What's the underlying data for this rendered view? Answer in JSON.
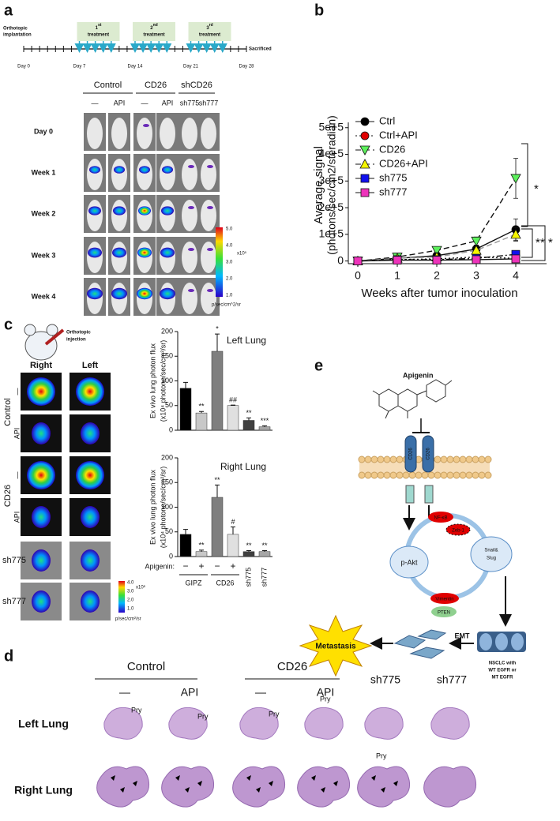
{
  "panel_labels": [
    "a",
    "b",
    "c",
    "d",
    "e"
  ],
  "panel_a": {
    "start_label": [
      "Orthotopic",
      "implantation"
    ],
    "end_label": "Sacrificed",
    "days": [
      "Day 0",
      "Day 7",
      "Day 14",
      "Day 21",
      "Day 28"
    ],
    "treatments": [
      {
        "number": "1",
        "suffix": "st",
        "word": "treatment"
      },
      {
        "number": "2",
        "suffix": "nd",
        "word": "treatment"
      },
      {
        "number": "3",
        "suffix": "rd",
        "word": "treatment"
      }
    ],
    "groups": [
      "Control",
      "CD26",
      "shCD26"
    ],
    "columns": [
      "—",
      "API",
      "—",
      "API",
      "sh775",
      "sh777"
    ],
    "rows": [
      "Day 0",
      "Week 1",
      "Week 2",
      "Week 3",
      "Week 4"
    ],
    "colorbar": {
      "ticks": [
        "5.0",
        "4.0",
        "3.0",
        "2.0",
        "1.0"
      ],
      "scale": "x10⁵",
      "unit": "p/sec/cm^2/sr"
    }
  },
  "chart_data": [
    {
      "type": "line",
      "xlabel": "Weeks after tumor inoculation",
      "ylabel": [
        "Average signal",
        "(photons/sec/cm2/steradian)"
      ],
      "x": [
        0,
        1,
        2,
        3,
        4
      ],
      "xlim": [
        -0.24,
        4.78
      ],
      "xticks": [
        0,
        1,
        2,
        3,
        4
      ],
      "ylim": [
        -10000,
        520000
      ],
      "yticks": [
        0,
        {
          "value": 100000,
          "label": "1e+5"
        },
        {
          "value": 200000,
          "label": "2e+5"
        },
        {
          "value": 300000,
          "label": "3e+5"
        },
        {
          "value": 400000,
          "label": "4e+5"
        },
        {
          "value": 500000,
          "label": "5e+5"
        }
      ],
      "legend": "upper left",
      "series": [
        {
          "name": "Ctrl",
          "color": "#000000",
          "marker": "circle",
          "dash": "solid",
          "values": [
            0,
            10000,
            20000,
            45000,
            118000
          ],
          "errors": [
            0,
            2000,
            4000,
            8000,
            40000
          ]
        },
        {
          "name": "Ctrl+API",
          "color": "#e00000",
          "marker": "circle",
          "dash": "dotted",
          "values": [
            0,
            5000,
            8000,
            15000,
            10000
          ],
          "errors": [
            0,
            1000,
            2000,
            3000,
            4000
          ]
        },
        {
          "name": "CD26",
          "color": "#5cf05c",
          "marker": "triangle-down",
          "dash": "dashed",
          "values": [
            0,
            15000,
            40000,
            75000,
            310000
          ],
          "errors": [
            0,
            3000,
            5000,
            15000,
            75000
          ]
        },
        {
          "name": "CD26+API",
          "color": "#f5f500",
          "marker": "triangle-up",
          "dash": "dashed",
          "values": [
            0,
            10000,
            15000,
            40000,
            100000
          ],
          "errors": [
            0,
            2000,
            3000,
            8000,
            25000
          ]
        },
        {
          "name": "sh775",
          "color": "#1010ee",
          "marker": "square",
          "dash": "dashdot",
          "values": [
            0,
            5000,
            5000,
            10000,
            25000
          ],
          "errors": [
            0,
            1000,
            1000,
            2000,
            5000
          ]
        },
        {
          "name": "sh777",
          "color": "#ee33bb",
          "marker": "square",
          "dash": "solid",
          "values": [
            0,
            3000,
            3000,
            5000,
            8000
          ],
          "errors": [
            0,
            1000,
            1000,
            1000,
            2000
          ]
        }
      ],
      "annotations": [
        "*",
        "*",
        "*",
        "*"
      ]
    },
    {
      "type": "bar",
      "title": "Left Lung",
      "ylabel": [
        "Ex vivo lung photon flux",
        "(x10⁴ photone/sec/cm²/sr)"
      ],
      "values": [
        85,
        35,
        160,
        50,
        20,
        7
      ],
      "errors": [
        12,
        3,
        35,
        1,
        5,
        2
      ],
      "colors": [
        "#000000",
        "#c8c8c8",
        "#7f7f7f",
        "#e0e0e0",
        "#404040",
        "#a6a6a6"
      ],
      "annotations": [
        null,
        "**",
        "*",
        "##",
        "**",
        "***"
      ],
      "ylim": [
        0,
        200
      ],
      "yticks": [
        0,
        50,
        100,
        150,
        200
      ]
    },
    {
      "type": "bar",
      "title": "Right Lung",
      "ylabel": [
        "Ex vivo lung photon flux",
        "(x10⁴ photone/sec/cm²/sr)"
      ],
      "category_prefix": "Apigenin:",
      "categories": [
        "−",
        "+",
        "−",
        "+",
        "sh775",
        "sh777"
      ],
      "group_labels": [
        "GIPZ",
        "CD26"
      ],
      "values": [
        45,
        10,
        120,
        45,
        10,
        10
      ],
      "errors": [
        10,
        3,
        25,
        15,
        2,
        2
      ],
      "colors": [
        "#000000",
        "#c8c8c8",
        "#7f7f7f",
        "#e0e0e0",
        "#404040",
        "#a6a6a6"
      ],
      "annotations": [
        null,
        "**",
        "**",
        "#",
        "**",
        "**"
      ],
      "ylim": [
        0,
        200
      ],
      "yticks": [
        0,
        50,
        100,
        150,
        200
      ]
    }
  ],
  "panel_c": {
    "injection_label": [
      "Orthotopic",
      "injection"
    ],
    "columns": [
      "Right",
      "Left"
    ],
    "groups": [
      "Control",
      "CD26"
    ],
    "treatments": [
      "—",
      "API",
      "—",
      "API"
    ],
    "knockdowns": [
      "sh775",
      "sh777"
    ],
    "colorbar": {
      "ticks": [
        "4.0",
        "3.0",
        "2.0",
        "1.0"
      ],
      "scale": "x10⁶",
      "unit": "p/sec/cm²/sr"
    }
  },
  "panel_d": {
    "groups": [
      "Control",
      "CD26"
    ],
    "columns": [
      "—",
      "API",
      "—",
      "API",
      "sh775",
      "sh777"
    ],
    "rows": [
      "Left Lung",
      "Right Lung"
    ],
    "pry_labels": [
      "Pry",
      "Pry",
      "Pry",
      "Pry",
      "Pry"
    ]
  },
  "panel_e": {
    "drug": "Apigenin",
    "receptors": [
      "CD26",
      "CD26"
    ],
    "akt": "p-Akt",
    "snail": [
      "Snail&",
      "Slug"
    ],
    "red_markers": [
      "NF-κB",
      "Zeb-1",
      "Vimentin"
    ],
    "pten": "PTEN",
    "emt": "EMT",
    "metastasis": "Metastasis",
    "cells": [
      "NSCLC with",
      "WT EGFR or",
      "MT EGFR"
    ]
  }
}
